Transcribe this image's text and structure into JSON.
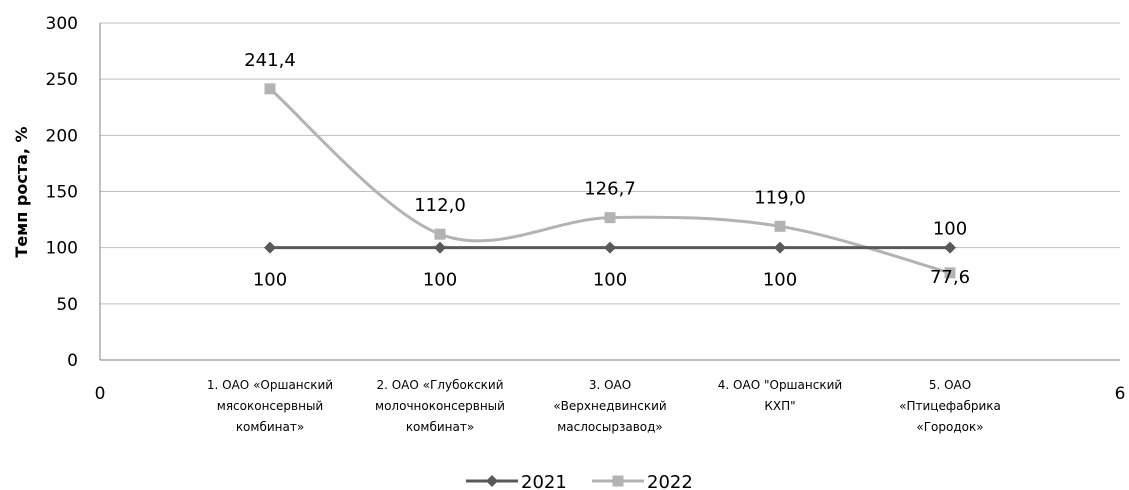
{
  "chart_data": {
    "type": "line",
    "ylabel": "Темп роста, %",
    "ylim": [
      0,
      300
    ],
    "yticks": [
      "0",
      "50",
      "100",
      "150",
      "200",
      "250",
      "300"
    ],
    "xlim": [
      0,
      6
    ],
    "xtick_labels": [
      "0",
      "6"
    ],
    "x": [
      1,
      2,
      3,
      4,
      5
    ],
    "categories": [
      [
        "1. ОАО «Оршанский",
        "мясоконсервный",
        "комбинат»"
      ],
      [
        "2. ОАО «Глубокский",
        "молочноконсервный",
        "комбинат»"
      ],
      [
        "3. ОАО",
        "«Верхнедвинский",
        "маслосырзавод»"
      ],
      [
        "4. ОАО \"Оршанский",
        "КХП\""
      ],
      [
        "5. ОАО",
        "«Птицефабрика",
        "«Городок»"
      ]
    ],
    "series": [
      {
        "name": "2021",
        "values": [
          100,
          100,
          100,
          100,
          100
        ],
        "labels": [
          "100",
          "100",
          "100",
          "100",
          "100"
        ],
        "color": "#595959",
        "marker": "diamond"
      },
      {
        "name": "2022",
        "values": [
          241.4,
          112.0,
          126.7,
          119.0,
          77.6
        ],
        "labels": [
          "241,4",
          "112,0",
          "126,7",
          "119,0",
          "77,6"
        ],
        "color": "#b3b3b3",
        "marker": "square",
        "smooth": true
      }
    ],
    "grid": "horizontal",
    "legend_position": "bottom"
  }
}
